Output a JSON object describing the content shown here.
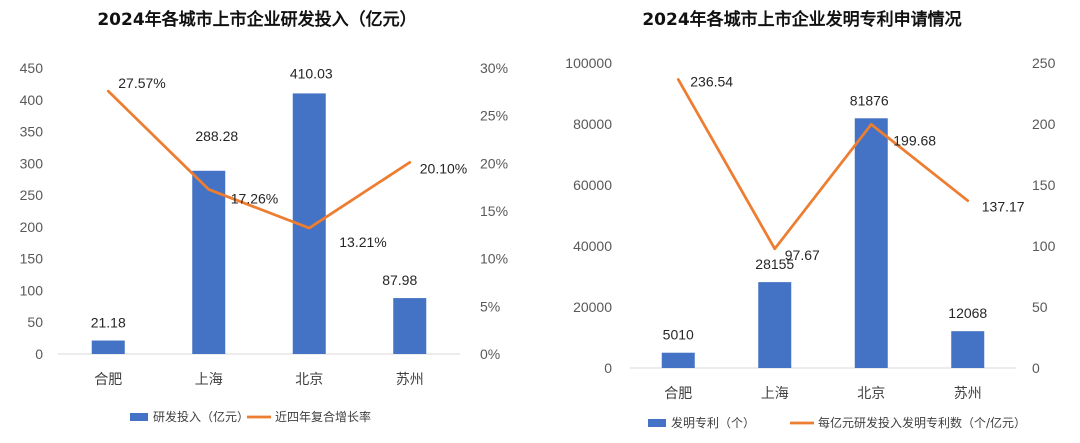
{
  "colors": {
    "bar": "#4472C4",
    "line": "#ED7D31",
    "axis": "#D9D9D9"
  },
  "chart_data": [
    {
      "type": "bar",
      "title": "2024年各城市上市企业研发投入（亿元）",
      "categories": [
        "合肥",
        "上海",
        "北京",
        "苏州"
      ],
      "series": [
        {
          "name": "研发投入（亿元）",
          "type": "bar",
          "axis": "left",
          "values": [
            21.18,
            288.28,
            410.03,
            87.98
          ],
          "labels": [
            "21.18",
            "288.28",
            "410.03",
            "87.98"
          ]
        },
        {
          "name": "近四年复合增长率",
          "type": "line",
          "axis": "right",
          "values": [
            27.57,
            17.26,
            13.21,
            20.1
          ],
          "labels": [
            "27.57%",
            "17.26%",
            "13.21%",
            "20.10%"
          ]
        }
      ],
      "ylim": [
        0,
        450
      ],
      "yticks": [
        "0",
        "50",
        "100",
        "150",
        "200",
        "250",
        "300",
        "350",
        "400",
        "450"
      ],
      "y2lim": [
        0,
        30
      ],
      "y2ticks": [
        "0%",
        "5%",
        "10%",
        "15%",
        "20%",
        "25%",
        "30%"
      ],
      "grid": false,
      "legend": "bottom"
    },
    {
      "type": "bar",
      "title": "2024年各城市上市企业发明专利申请情况",
      "categories": [
        "合肥",
        "上海",
        "北京",
        "苏州"
      ],
      "series": [
        {
          "name": "发明专利（个）",
          "type": "bar",
          "axis": "left",
          "values": [
            5010,
            28155,
            81876,
            12068
          ],
          "labels": [
            "5010",
            "28155",
            "81876",
            "12068"
          ]
        },
        {
          "name": "每亿元研发投入发明专利数（个/亿元）",
          "type": "line",
          "axis": "right",
          "values": [
            236.54,
            97.67,
            199.68,
            137.17
          ],
          "labels": [
            "236.54",
            "97.67",
            "199.68",
            "137.17"
          ]
        }
      ],
      "ylim": [
        0,
        100000
      ],
      "yticks": [
        "0",
        "20000",
        "40000",
        "60000",
        "80000",
        "100000"
      ],
      "y2lim": [
        0,
        250
      ],
      "y2ticks": [
        "0",
        "50",
        "100",
        "150",
        "200",
        "250"
      ],
      "grid": false,
      "legend": "bottom"
    }
  ]
}
